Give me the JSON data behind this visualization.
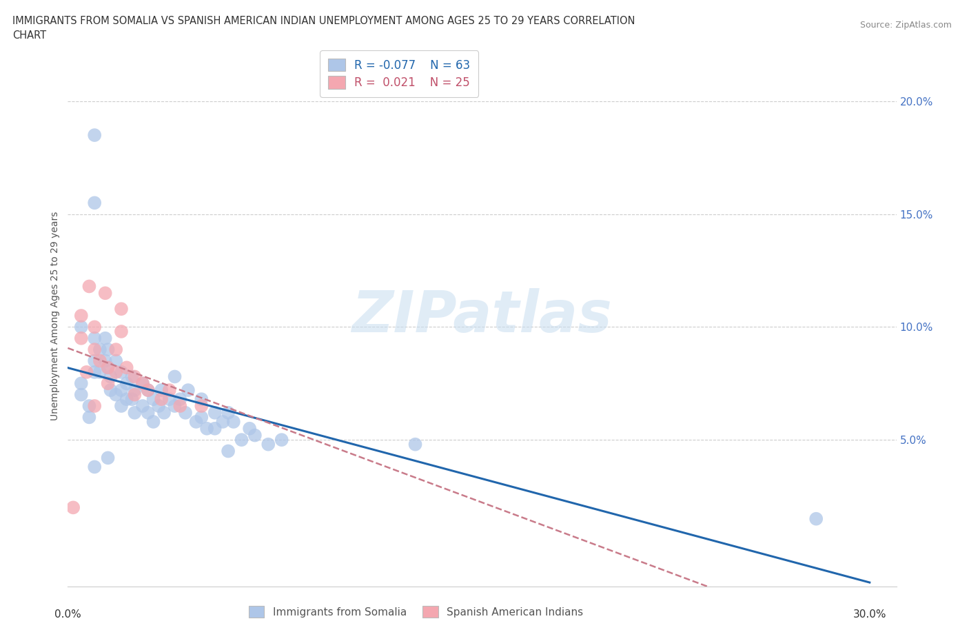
{
  "title_line1": "IMMIGRANTS FROM SOMALIA VS SPANISH AMERICAN INDIAN UNEMPLOYMENT AMONG AGES 25 TO 29 YEARS CORRELATION",
  "title_line2": "CHART",
  "source": "Source: ZipAtlas.com",
  "ylabel": "Unemployment Among Ages 25 to 29 years",
  "ytick_labels": [
    "5.0%",
    "10.0%",
    "15.0%",
    "20.0%"
  ],
  "ytick_values": [
    0.05,
    0.1,
    0.15,
    0.2
  ],
  "xlim": [
    0.0,
    0.31
  ],
  "ylim": [
    -0.015,
    0.225
  ],
  "watermark": "ZIPatlas",
  "legend_somalia_r": "-0.077",
  "legend_somalia_n": "63",
  "legend_spanish_r": "0.021",
  "legend_spanish_n": "25",
  "somalia_color": "#aec6e8",
  "spanish_color": "#f4a7b0",
  "somalia_line_color": "#2166ac",
  "spanish_line_color": "#c97b8a",
  "somalia_x": [
    0.01,
    0.01,
    0.005,
    0.005,
    0.005,
    0.008,
    0.008,
    0.01,
    0.01,
    0.01,
    0.012,
    0.012,
    0.014,
    0.014,
    0.015,
    0.015,
    0.016,
    0.016,
    0.018,
    0.018,
    0.02,
    0.02,
    0.02,
    0.022,
    0.022,
    0.024,
    0.024,
    0.025,
    0.025,
    0.028,
    0.028,
    0.03,
    0.03,
    0.032,
    0.032,
    0.034,
    0.035,
    0.036,
    0.038,
    0.04,
    0.04,
    0.042,
    0.044,
    0.045,
    0.048,
    0.05,
    0.05,
    0.052,
    0.055,
    0.055,
    0.058,
    0.06,
    0.06,
    0.062,
    0.065,
    0.068,
    0.07,
    0.075,
    0.08,
    0.13,
    0.28,
    0.01,
    0.015
  ],
  "somalia_y": [
    0.185,
    0.155,
    0.1,
    0.075,
    0.07,
    0.065,
    0.06,
    0.095,
    0.085,
    0.08,
    0.09,
    0.08,
    0.095,
    0.085,
    0.09,
    0.082,
    0.078,
    0.072,
    0.085,
    0.07,
    0.08,
    0.072,
    0.065,
    0.075,
    0.068,
    0.078,
    0.068,
    0.072,
    0.062,
    0.075,
    0.065,
    0.072,
    0.062,
    0.068,
    0.058,
    0.065,
    0.072,
    0.062,
    0.068,
    0.078,
    0.065,
    0.068,
    0.062,
    0.072,
    0.058,
    0.06,
    0.068,
    0.055,
    0.062,
    0.055,
    0.058,
    0.062,
    0.045,
    0.058,
    0.05,
    0.055,
    0.052,
    0.048,
    0.05,
    0.048,
    0.015,
    0.038,
    0.042
  ],
  "spanish_x": [
    0.002,
    0.005,
    0.005,
    0.007,
    0.008,
    0.01,
    0.01,
    0.012,
    0.014,
    0.015,
    0.015,
    0.018,
    0.018,
    0.02,
    0.02,
    0.022,
    0.025,
    0.025,
    0.028,
    0.03,
    0.035,
    0.038,
    0.042,
    0.05,
    0.01
  ],
  "spanish_y": [
    0.02,
    0.105,
    0.095,
    0.08,
    0.118,
    0.1,
    0.09,
    0.085,
    0.115,
    0.082,
    0.075,
    0.09,
    0.08,
    0.108,
    0.098,
    0.082,
    0.07,
    0.078,
    0.075,
    0.072,
    0.068,
    0.072,
    0.065,
    0.065,
    0.065
  ]
}
